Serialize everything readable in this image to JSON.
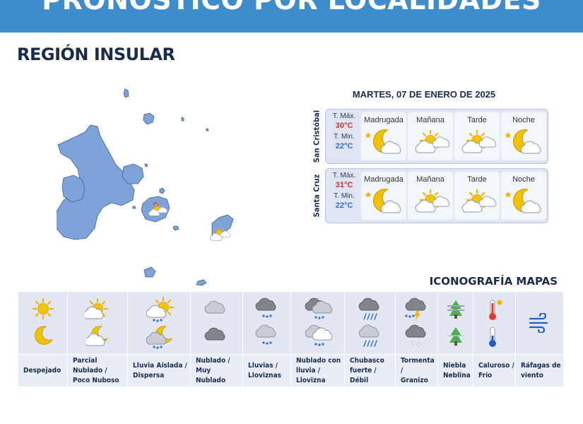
{
  "banner": {
    "title": "PRONÓSTICO POR LOCALIDADES"
  },
  "region": {
    "title": "REGIÓN INSULAR"
  },
  "forecast": {
    "date": "MARTES, 07 DE ENERO DE 2025",
    "max_label": "T. Máx.",
    "min_label": "T. Min.",
    "periods": [
      "Madrugada",
      "Mañana",
      "Tarde",
      "Noche"
    ],
    "cities": [
      {
        "name": "San Cristóbal",
        "tmax": "30°C",
        "tmin": "22°C",
        "icons": [
          "moon-cloud-icon",
          "sun-cloud-icon",
          "sun-cloud-icon",
          "moon-cloud-icon"
        ]
      },
      {
        "name": "Santa Cruz",
        "tmax": "31°C",
        "tmin": "22°C",
        "icons": [
          "moon-cloud-icon",
          "sun-cloud-icon",
          "sun-cloud-icon",
          "moon-cloud-icon"
        ]
      }
    ]
  },
  "legend": {
    "title": "ICONOGRAFÍA MAPAS",
    "items": [
      {
        "label": "Despejado"
      },
      {
        "label": "Parcial Nublado /\nPoco Nuboso"
      },
      {
        "label": "Lluvia Aislada /\nDispersa"
      },
      {
        "label": "Nublado /\nMuy Nublado"
      },
      {
        "label": "Lluvias /\nLloviznas"
      },
      {
        "label": "Nublado con\nlluvia / Llovizna"
      },
      {
        "label": "Chubasco\nfuerte / Débil"
      },
      {
        "label": "Tormenta /\nGranizo"
      },
      {
        "label": "Niebla\nNeblina"
      },
      {
        "label": "Caluroso /\nFrío"
      },
      {
        "label": "Ráfagas de\nviento"
      }
    ]
  },
  "colors": {
    "banner": "#3f8ccd",
    "island": "#7da3d8",
    "title": "#1a2b4f",
    "tmax": "#d32f2f",
    "tmin": "#2e6fd6"
  }
}
